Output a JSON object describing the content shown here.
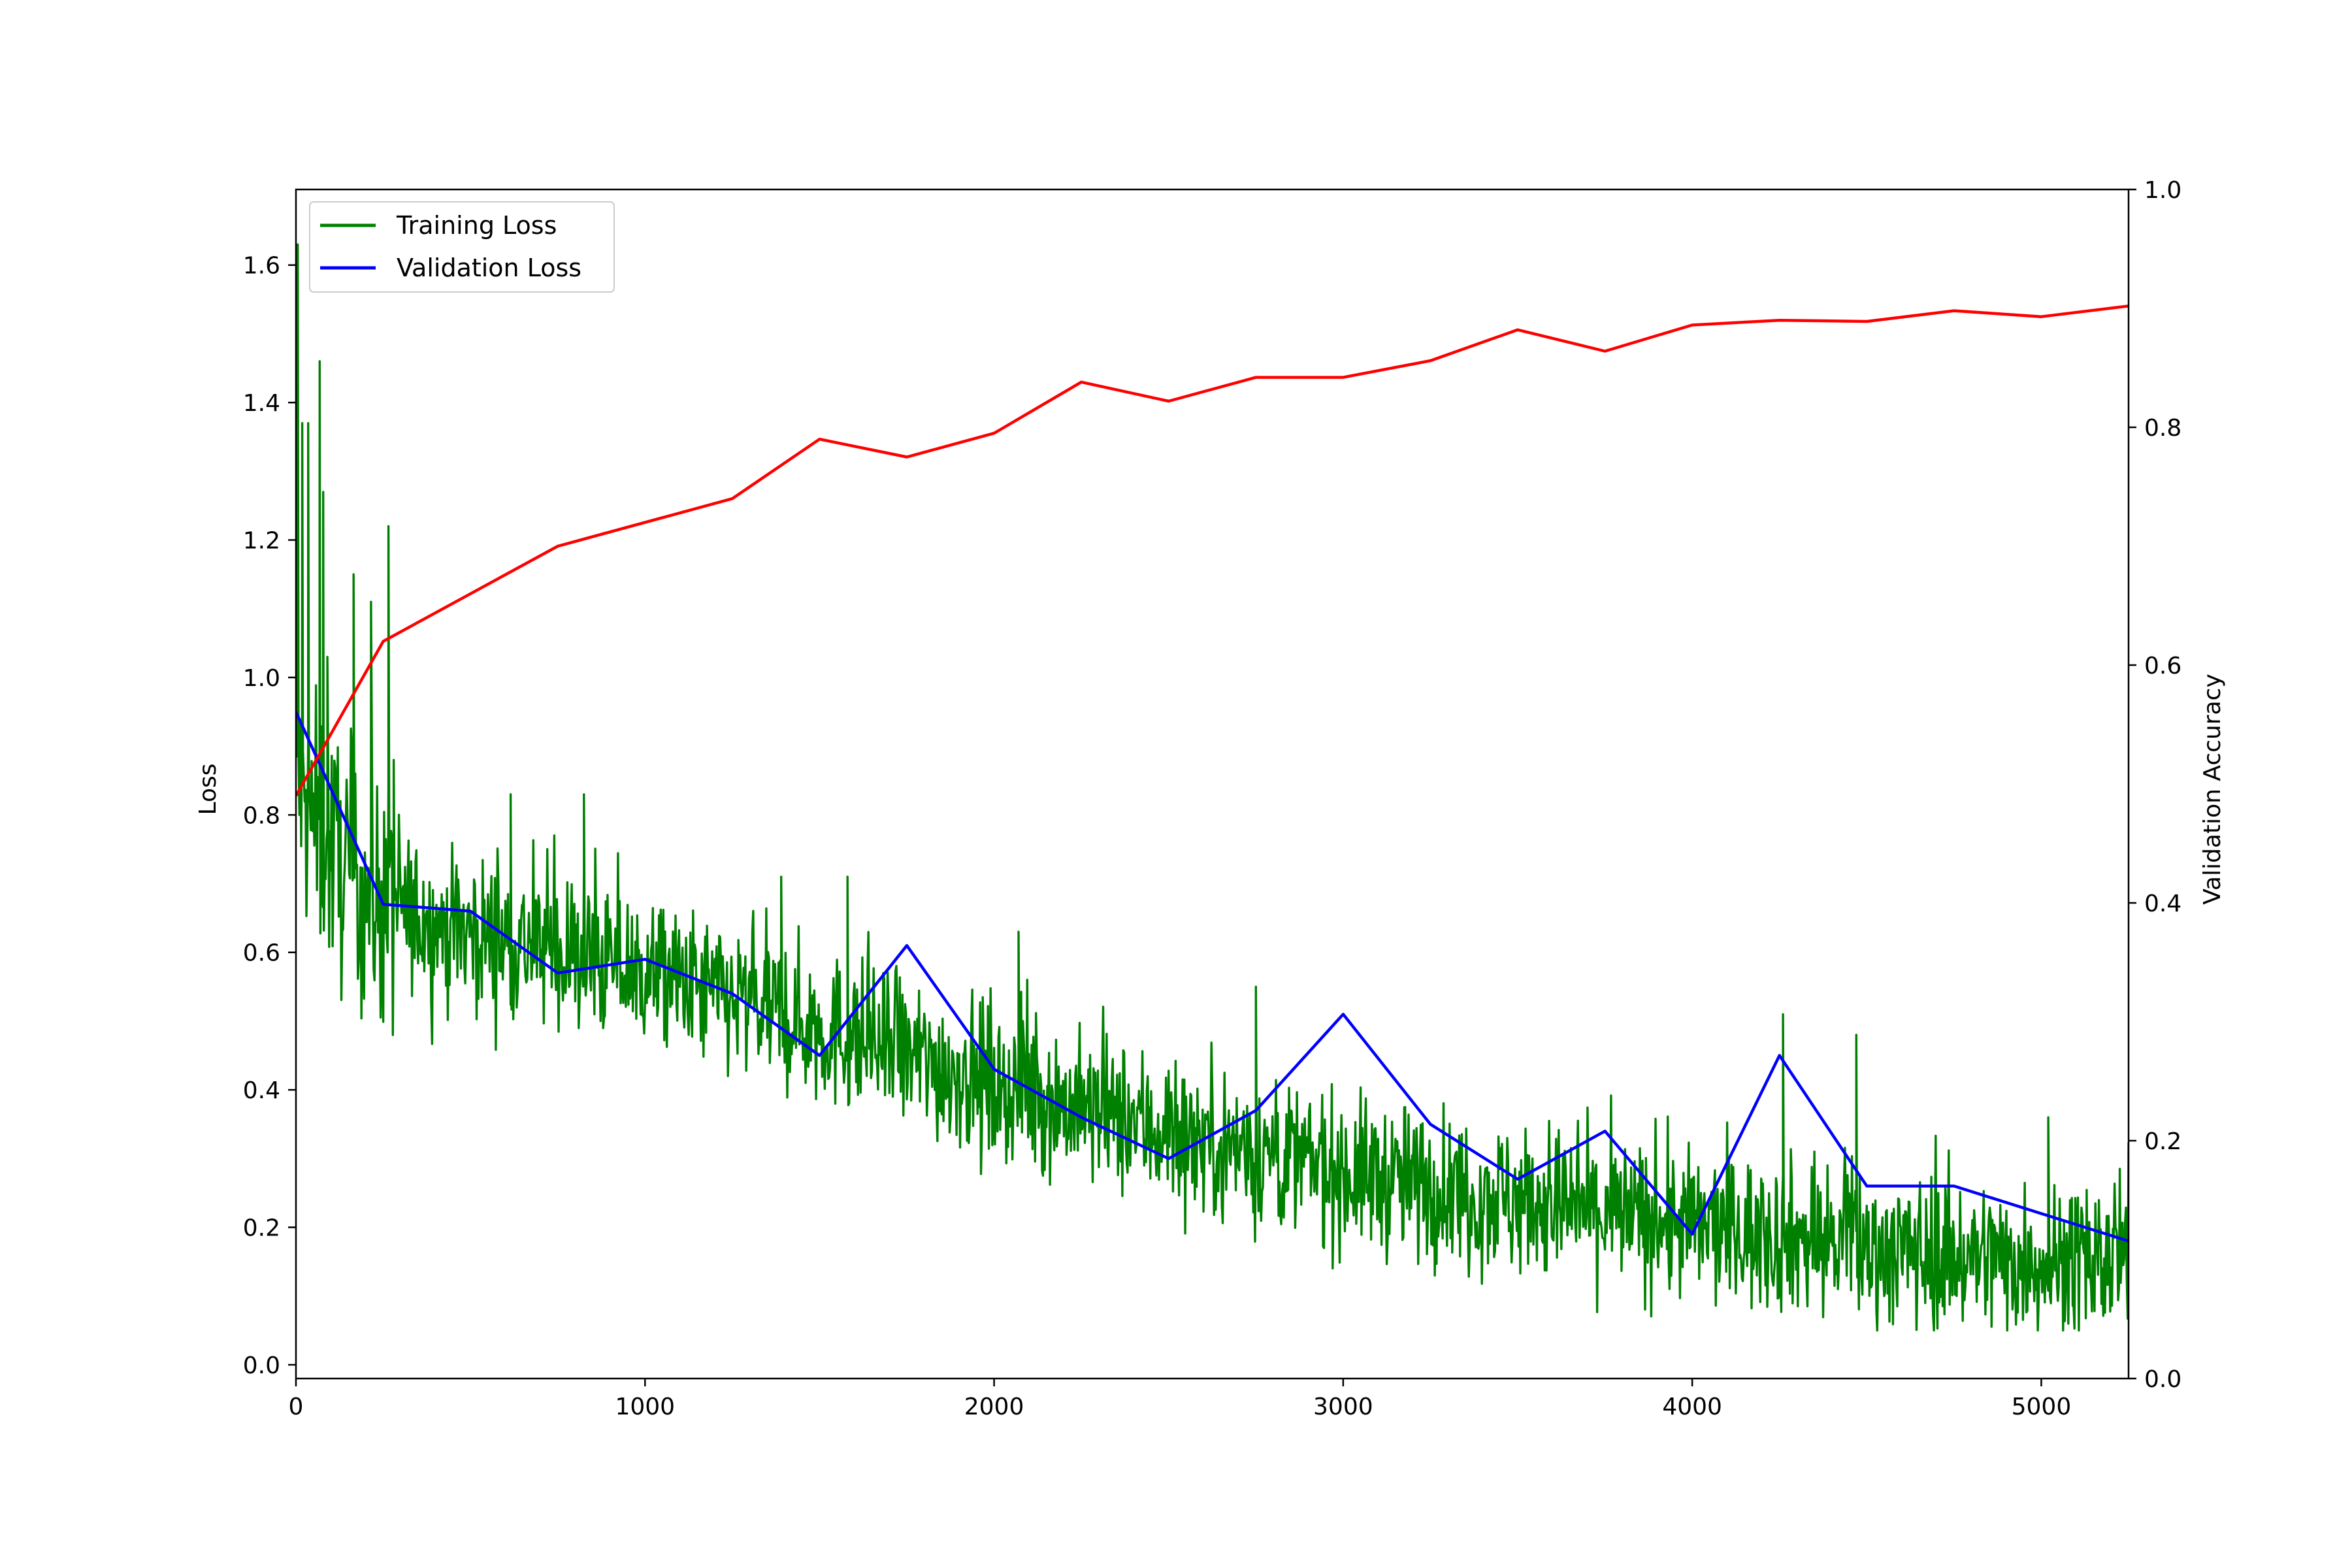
{
  "chart_data": {
    "type": "line",
    "title": "",
    "xlabel": "",
    "ylabel": "Loss",
    "ylabel_right": "Validation Accuracy",
    "xlim": [
      0,
      5250
    ],
    "ylim": [
      -0.02,
      1.71
    ],
    "ylim_right": [
      0.0,
      1.0
    ],
    "x_ticks": [
      0,
      1000,
      2000,
      3000,
      4000,
      5000
    ],
    "x_tick_labels": [
      "0",
      "1000",
      "2000",
      "3000",
      "4000",
      "5000"
    ],
    "y_ticks": [
      0.0,
      0.2,
      0.4,
      0.6,
      0.8,
      1.0,
      1.2,
      1.4,
      1.6
    ],
    "y_tick_labels": [
      "0.0",
      "0.2",
      "0.4",
      "0.6",
      "0.8",
      "1.0",
      "1.2",
      "1.4",
      "1.6"
    ],
    "y_right_ticks": [
      0.0,
      0.2,
      0.4,
      0.6,
      0.8,
      1.0
    ],
    "y_right_tick_labels": [
      "0.0",
      "0.2",
      "0.4",
      "0.6",
      "0.8",
      "1.0"
    ],
    "grid": false,
    "legend": {
      "placement": "upper-left",
      "entries": [
        "Training Loss",
        "Validation Loss"
      ]
    },
    "series": [
      {
        "name": "Training Loss",
        "axis": "left",
        "color": "#008000",
        "style": "noisy-dense",
        "x": [
          0,
          10,
          30,
          60,
          100,
          150,
          200,
          250,
          300,
          400,
          500,
          750,
          1000,
          1250,
          1500,
          1750,
          2000,
          2250,
          2500,
          2750,
          3000,
          3250,
          3500,
          3750,
          4000,
          4250,
          4500,
          4750,
          5000,
          5250
        ],
        "values": [
          0.9,
          0.85,
          0.8,
          0.78,
          0.75,
          0.72,
          0.69,
          0.67,
          0.66,
          0.64,
          0.63,
          0.6,
          0.57,
          0.53,
          0.49,
          0.45,
          0.41,
          0.37,
          0.34,
          0.31,
          0.28,
          0.26,
          0.24,
          0.22,
          0.2,
          0.19,
          0.17,
          0.16,
          0.15,
          0.15
        ],
        "spikes": [
          {
            "x": 5,
            "y": 1.63
          },
          {
            "x": 18,
            "y": 1.37
          },
          {
            "x": 35,
            "y": 1.37
          },
          {
            "x": 68,
            "y": 1.46
          },
          {
            "x": 78,
            "y": 1.27
          },
          {
            "x": 90,
            "y": 1.03
          },
          {
            "x": 165,
            "y": 1.15
          },
          {
            "x": 215,
            "y": 1.11
          },
          {
            "x": 265,
            "y": 1.22
          },
          {
            "x": 280,
            "y": 0.88
          },
          {
            "x": 615,
            "y": 0.83
          },
          {
            "x": 825,
            "y": 0.83
          },
          {
            "x": 1390,
            "y": 0.71
          },
          {
            "x": 1580,
            "y": 0.71
          },
          {
            "x": 2070,
            "y": 0.63
          },
          {
            "x": 2750,
            "y": 0.55
          },
          {
            "x": 4260,
            "y": 0.51
          },
          {
            "x": 4470,
            "y": 0.48
          },
          {
            "x": 5020,
            "y": 0.36
          }
        ]
      },
      {
        "name": "Validation Loss",
        "axis": "left",
        "color": "#0000ff",
        "x": [
          0,
          250,
          500,
          750,
          1000,
          1250,
          1500,
          1750,
          2000,
          2250,
          2500,
          2750,
          3000,
          3250,
          3500,
          3750,
          4000,
          4250,
          4500,
          4750,
          5000,
          5250
        ],
        "values": [
          0.95,
          0.67,
          0.66,
          0.57,
          0.59,
          0.54,
          0.45,
          0.61,
          0.43,
          0.36,
          0.3,
          0.37,
          0.51,
          0.35,
          0.27,
          0.34,
          0.19,
          0.45,
          0.26,
          0.26,
          0.22,
          0.18
        ]
      },
      {
        "axis": "right",
        "color": "#ff0000",
        "x": [
          0,
          250,
          500,
          750,
          1000,
          1250,
          1500,
          1750,
          2000,
          2250,
          2500,
          2750,
          3000,
          3250,
          3500,
          3750,
          4000,
          4250,
          4500,
          4750,
          5000,
          5250
        ],
        "values": [
          0.49,
          0.62,
          0.66,
          0.7,
          0.72,
          0.74,
          0.79,
          0.775,
          0.795,
          0.838,
          0.822,
          0.842,
          0.842,
          0.856,
          0.882,
          0.864,
          0.886,
          0.89,
          0.889,
          0.898,
          0.893,
          0.902
        ]
      }
    ]
  }
}
